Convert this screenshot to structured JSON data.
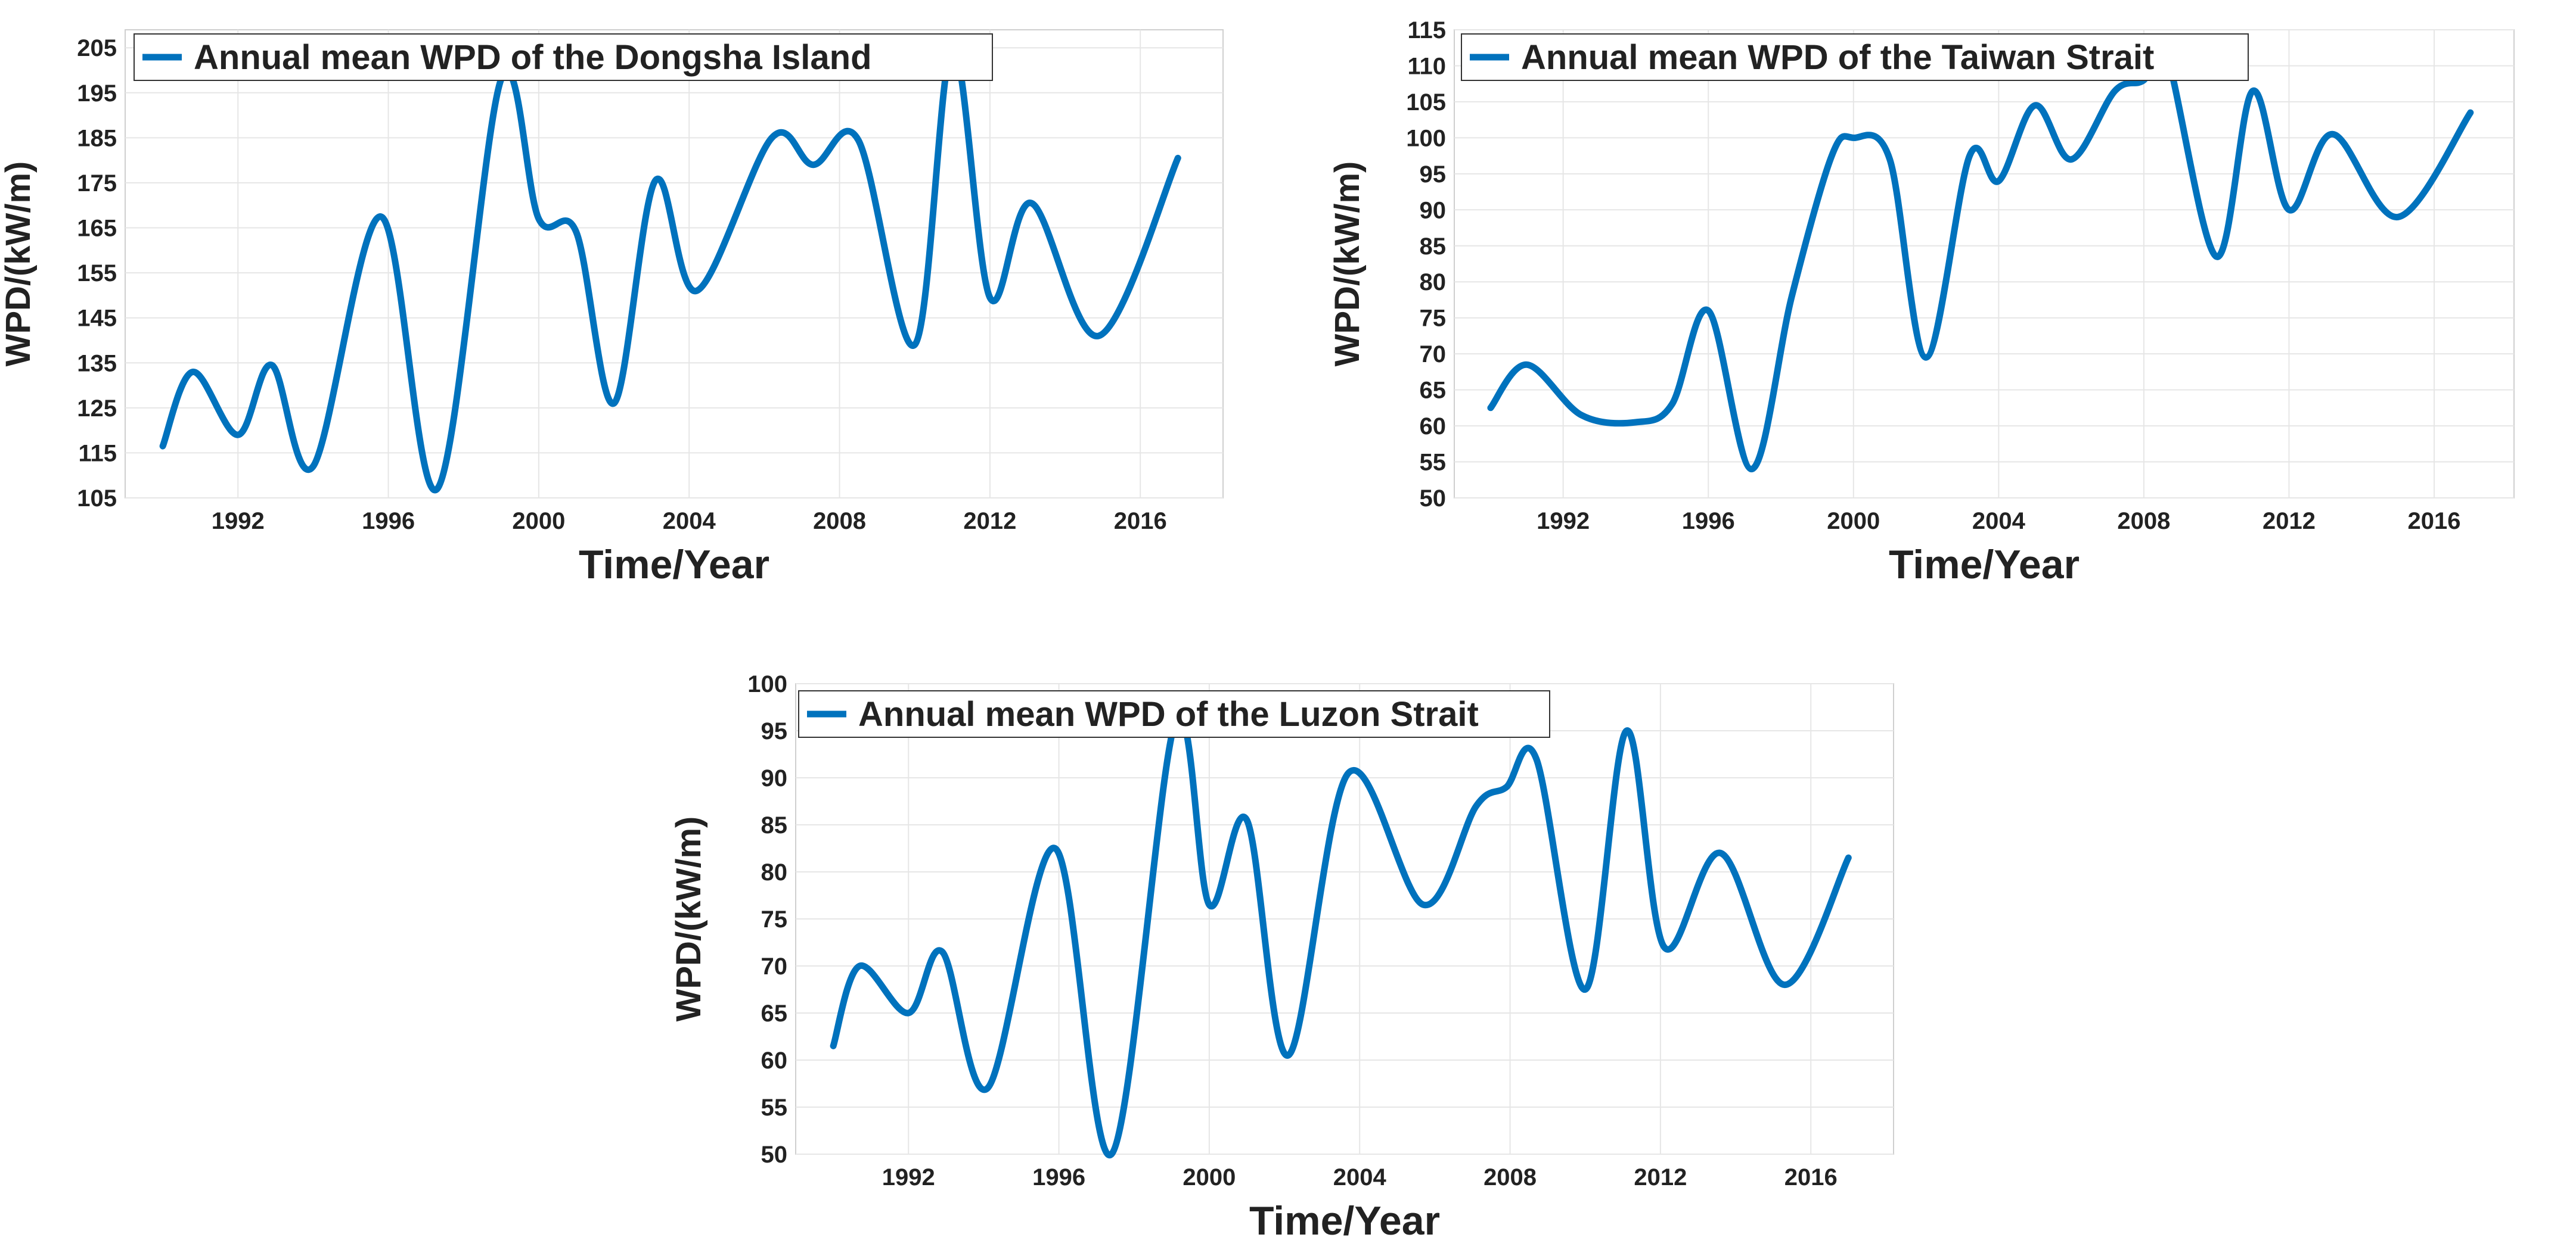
{
  "chart_data": [
    {
      "type": "line",
      "legend": "Annual mean WPD of the Dongsha Island",
      "legend_position": "top-left",
      "xlabel": "Time/Year",
      "ylabel": "WPD/(kW/m)",
      "xlim": [
        1989.0,
        2018.2
      ],
      "ylim": [
        105,
        209
      ],
      "xticks": [
        1992,
        1996,
        2000,
        2004,
        2008,
        2012,
        2016
      ],
      "yticks": [
        105,
        115,
        125,
        135,
        145,
        155,
        165,
        175,
        185,
        195,
        205
      ],
      "grid": true,
      "color": "#0072BD",
      "points": [
        [
          1990.0,
          116.5
        ],
        [
          1990.8,
          133.0
        ],
        [
          1992.0,
          119.0
        ],
        [
          1992.9,
          134.5
        ],
        [
          1994.0,
          112.0
        ],
        [
          1995.8,
          167.5
        ],
        [
          1997.3,
          107.0
        ],
        [
          1999.0,
          198.0
        ],
        [
          2000.0,
          167.0
        ],
        [
          2001.0,
          164.0
        ],
        [
          2002.0,
          126.0
        ],
        [
          2003.1,
          175.5
        ],
        [
          2004.2,
          151.0
        ],
        [
          2006.2,
          185.0
        ],
        [
          2007.3,
          179.0
        ],
        [
          2008.5,
          184.5
        ],
        [
          2010.0,
          139.0
        ],
        [
          2011.0,
          205.0
        ],
        [
          2012.0,
          149.5
        ],
        [
          2013.1,
          170.5
        ],
        [
          2014.9,
          141.0
        ],
        [
          2017.0,
          180.5
        ]
      ]
    },
    {
      "type": "line",
      "legend": "Annual mean WPD of the Taiwan Strait",
      "legend_position": "top-left",
      "xlabel": "Time/Year",
      "ylabel": "WPD/(kW/m)",
      "xlim": [
        1989.0,
        2018.2
      ],
      "ylim": [
        50,
        115
      ],
      "xticks": [
        1992,
        1996,
        2000,
        2004,
        2008,
        2012,
        2016
      ],
      "yticks": [
        50,
        55,
        60,
        65,
        70,
        75,
        80,
        85,
        90,
        95,
        100,
        105,
        110,
        115
      ],
      "grid": true,
      "color": "#0072BD",
      "points": [
        [
          1990.0,
          62.5
        ],
        [
          1991.0,
          68.5
        ],
        [
          1992.5,
          61.5
        ],
        [
          1994.0,
          60.5
        ],
        [
          1995.0,
          63.0
        ],
        [
          1996.0,
          76.0
        ],
        [
          1997.2,
          54.0
        ],
        [
          1998.3,
          78.0
        ],
        [
          1999.4,
          97.5
        ],
        [
          2000.0,
          100.0
        ],
        [
          2001.0,
          97.0
        ],
        [
          2002.0,
          69.5
        ],
        [
          2003.2,
          97.5
        ],
        [
          2004.0,
          94.0
        ],
        [
          2005.0,
          104.5
        ],
        [
          2006.0,
          97.0
        ],
        [
          2007.2,
          106.5
        ],
        [
          2008.0,
          108.0
        ],
        [
          2008.6,
          112.0
        ],
        [
          2010.0,
          83.5
        ],
        [
          2011.0,
          106.5
        ],
        [
          2012.0,
          90.0
        ],
        [
          2013.2,
          100.5
        ],
        [
          2015.0,
          89.0
        ],
        [
          2017.0,
          103.5
        ]
      ]
    },
    {
      "type": "line",
      "legend": "Annual mean WPD of the Luzon Strait",
      "legend_position": "top-left",
      "xlabel": "Time/Year",
      "ylabel": "WPD/(kW/m)",
      "xlim": [
        1989.0,
        2018.2
      ],
      "ylim": [
        50,
        100
      ],
      "xticks": [
        1992,
        1996,
        2000,
        2004,
        2008,
        2012,
        2016
      ],
      "yticks": [
        50,
        55,
        60,
        65,
        70,
        75,
        80,
        85,
        90,
        95,
        100
      ],
      "grid": true,
      "color": "#0072BD",
      "points": [
        [
          1990.0,
          61.5
        ],
        [
          1990.7,
          70.0
        ],
        [
          1992.0,
          65.0
        ],
        [
          1992.9,
          71.5
        ],
        [
          1994.1,
          57.0
        ],
        [
          1995.9,
          82.5
        ],
        [
          1997.4,
          50.0
        ],
        [
          1999.1,
          96.0
        ],
        [
          2000.0,
          76.5
        ],
        [
          2001.0,
          85.5
        ],
        [
          2002.1,
          60.5
        ],
        [
          2003.7,
          90.5
        ],
        [
          2005.7,
          76.5
        ],
        [
          2007.1,
          87.0
        ],
        [
          2007.9,
          89.0
        ],
        [
          2008.7,
          92.0
        ],
        [
          2010.0,
          67.5
        ],
        [
          2011.1,
          95.0
        ],
        [
          2012.1,
          72.0
        ],
        [
          2013.6,
          82.0
        ],
        [
          2015.3,
          68.0
        ],
        [
          2017.0,
          81.5
        ]
      ]
    }
  ]
}
